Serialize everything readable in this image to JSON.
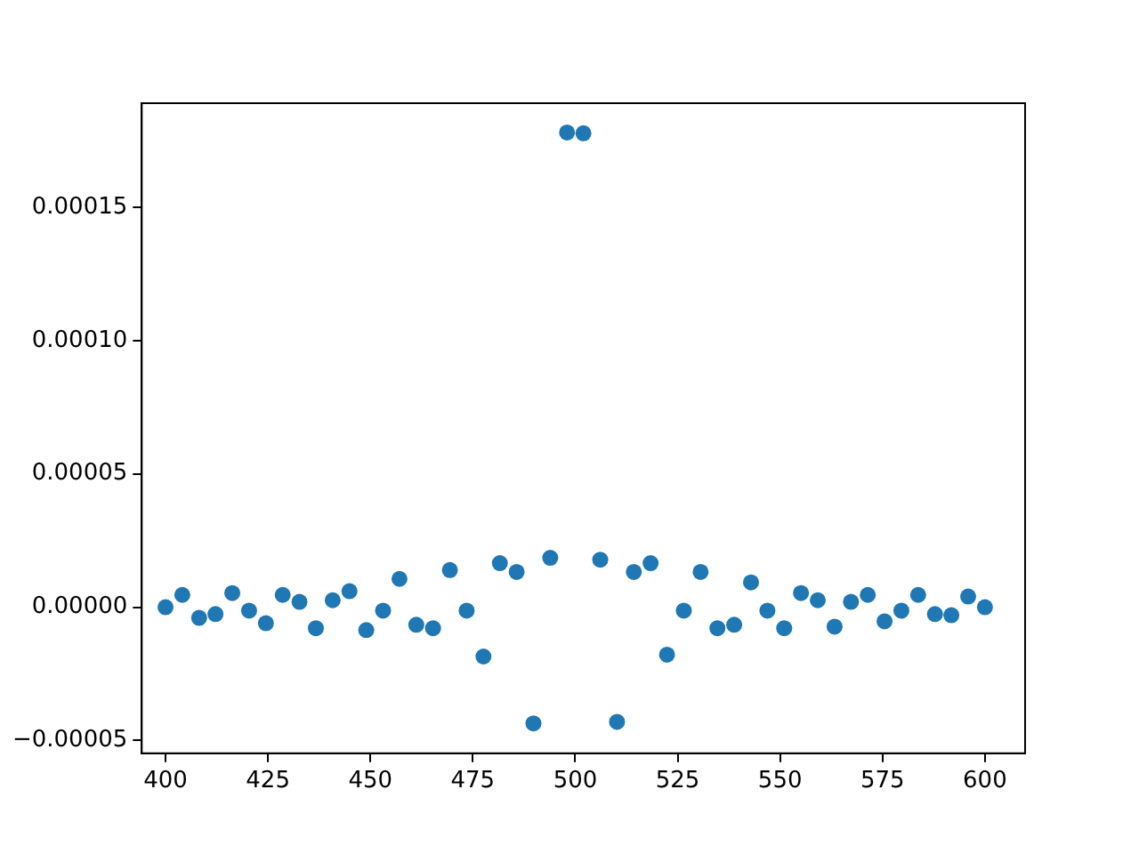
{
  "chart_data": {
    "type": "scatter",
    "marker": "circle",
    "color": "#1f77b4",
    "x": [
      400,
      404.1,
      408.2,
      412.2,
      416.3,
      420.4,
      424.5,
      428.6,
      432.7,
      436.7,
      440.8,
      444.9,
      449,
      453.1,
      457.1,
      461.2,
      465.3,
      469.4,
      473.5,
      477.6,
      481.6,
      485.7,
      489.8,
      493.9,
      498,
      502,
      506.1,
      510.2,
      514.3,
      518.4,
      522.4,
      526.5,
      530.6,
      534.7,
      538.8,
      542.9,
      546.9,
      551,
      555.1,
      559.2,
      563.3,
      567.3,
      571.4,
      575.5,
      579.6,
      583.7,
      587.8,
      591.8,
      595.9,
      600
    ],
    "values": [
      0,
      4.6e-06,
      -4e-06,
      -2.6e-06,
      5.3e-06,
      -1.3e-06,
      -6e-06,
      4.6e-06,
      2e-06,
      -7.9e-06,
      2.6e-06,
      6e-06,
      -8.6e-06,
      -1.3e-06,
      1.06e-05,
      -6.6e-06,
      -7.9e-06,
      1.39e-05,
      -1.3e-06,
      -1.85e-05,
      1.65e-05,
      1.32e-05,
      -4.36e-05,
      1.85e-05,
      0.000178,
      0.0001777,
      1.78e-05,
      -4.3e-05,
      1.32e-05,
      1.65e-05,
      -1.78e-05,
      -1.3e-06,
      1.32e-05,
      -7.9e-06,
      -6.6e-06,
      9.3e-06,
      -1.3e-06,
      -7.9e-06,
      5.3e-06,
      2.6e-06,
      -7.3e-06,
      2e-06,
      4.6e-06,
      -5.3e-06,
      -1.3e-06,
      4.6e-06,
      -2.6e-06,
      -3e-06,
      4e-06,
      0
    ],
    "xlim": [
      394.2,
      609.8
    ],
    "ylim": [
      -5.48e-05,
      0.000189
    ],
    "xticks": [
      400,
      425,
      450,
      475,
      500,
      525,
      550,
      575,
      600
    ],
    "yticks": [
      {
        "value": -5e-05,
        "label": "−0.00005"
      },
      {
        "value": 0,
        "label": "0.00000"
      },
      {
        "value": 5e-05,
        "label": "0.00005"
      },
      {
        "value": 0.0001,
        "label": "0.00010"
      },
      {
        "value": 0.00015,
        "label": "0.00015"
      }
    ]
  }
}
